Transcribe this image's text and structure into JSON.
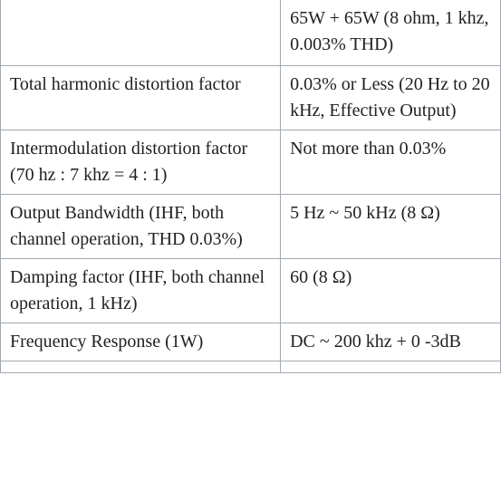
{
  "table": {
    "rows": [
      {
        "label": "",
        "value": "65W + 65W (8 ohm, 1 khz, 0.003% THD)"
      },
      {
        "label": "Total harmonic distortion factor",
        "value": "0.03% or Less (20 Hz to 20 kHz, Effective Output)"
      },
      {
        "label": "Intermodulation distortion factor (70 hz : 7 khz = 4 : 1)",
        "value": "Not more than 0.03%"
      },
      {
        "label": "Output Bandwidth (IHF, both channel operation, THD 0.03%)",
        "value": "5 Hz ~ 50 kHz (8 Ω)"
      },
      {
        "label": "Damping factor (IHF, both channel operation, 1 kHz)",
        "value": "60 (8 Ω)"
      },
      {
        "label": "Frequency Response (1W)",
        "value": "DC ~ 200 khz + 0 -3dB"
      }
    ],
    "border_color": "#a2a9b1",
    "background_color": "#ffffff",
    "text_color": "#202122",
    "font_size": 20,
    "label_column_width_pct": 56,
    "value_column_width_pct": 44
  }
}
